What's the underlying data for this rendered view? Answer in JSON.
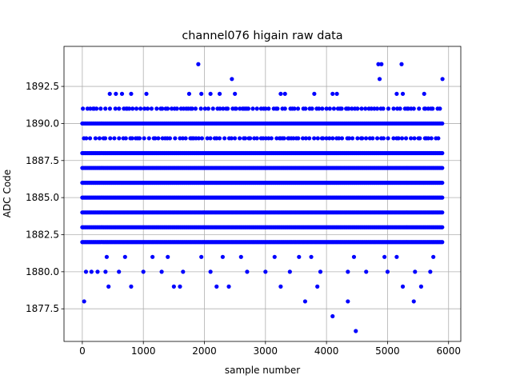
{
  "chart_data": {
    "type": "scatter",
    "title": "channel076 higain raw data",
    "xlabel": "sample number",
    "ylabel": "ADC Code",
    "xlim": [
      -300,
      6200
    ],
    "ylim": [
      1875.3,
      1895.2
    ],
    "xticks": [
      0,
      1000,
      2000,
      3000,
      4000,
      5000,
      6000
    ],
    "xtick_labels": [
      "0",
      "1000",
      "2000",
      "3000",
      "4000",
      "5000",
      "6000"
    ],
    "yticks": [
      1877.5,
      1880.0,
      1882.5,
      1885.0,
      1887.5,
      1890.0,
      1892.5
    ],
    "ytick_labels": [
      "1877.5",
      "1880.0",
      "1882.5",
      "1885.0",
      "1887.5",
      "1890.0",
      "1892.5"
    ],
    "grid": true,
    "marker_color": "#0000ff",
    "x_range": [
      0,
      5900
    ],
    "dense_levels": [
      1882,
      1883,
      1884,
      1885,
      1886,
      1887,
      1888,
      1890
    ],
    "medium_levels": [
      1889,
      1891
    ],
    "sparse_points": [
      {
        "x": 30,
        "y": 1878
      },
      {
        "x": 60,
        "y": 1880
      },
      {
        "x": 150,
        "y": 1880
      },
      {
        "x": 250,
        "y": 1880
      },
      {
        "x": 380,
        "y": 1880
      },
      {
        "x": 600,
        "y": 1880
      },
      {
        "x": 1000,
        "y": 1880
      },
      {
        "x": 1300,
        "y": 1880
      },
      {
        "x": 1650,
        "y": 1880
      },
      {
        "x": 2100,
        "y": 1880
      },
      {
        "x": 2700,
        "y": 1880
      },
      {
        "x": 3000,
        "y": 1880
      },
      {
        "x": 3400,
        "y": 1880
      },
      {
        "x": 3900,
        "y": 1880
      },
      {
        "x": 4350,
        "y": 1880
      },
      {
        "x": 4650,
        "y": 1880
      },
      {
        "x": 5000,
        "y": 1880
      },
      {
        "x": 5450,
        "y": 1880
      },
      {
        "x": 5700,
        "y": 1880
      },
      {
        "x": 400,
        "y": 1881
      },
      {
        "x": 700,
        "y": 1881
      },
      {
        "x": 1150,
        "y": 1881
      },
      {
        "x": 1400,
        "y": 1881
      },
      {
        "x": 1950,
        "y": 1881
      },
      {
        "x": 2300,
        "y": 1881
      },
      {
        "x": 2600,
        "y": 1881
      },
      {
        "x": 3150,
        "y": 1881
      },
      {
        "x": 3550,
        "y": 1881
      },
      {
        "x": 3750,
        "y": 1881
      },
      {
        "x": 4450,
        "y": 1881
      },
      {
        "x": 4950,
        "y": 1881
      },
      {
        "x": 5150,
        "y": 1881
      },
      {
        "x": 5750,
        "y": 1881
      },
      {
        "x": 430,
        "y": 1879
      },
      {
        "x": 800,
        "y": 1879
      },
      {
        "x": 1500,
        "y": 1879
      },
      {
        "x": 1600,
        "y": 1879
      },
      {
        "x": 2200,
        "y": 1879
      },
      {
        "x": 2400,
        "y": 1879
      },
      {
        "x": 3250,
        "y": 1879
      },
      {
        "x": 3850,
        "y": 1879
      },
      {
        "x": 5250,
        "y": 1879
      },
      {
        "x": 5550,
        "y": 1879
      },
      {
        "x": 3650,
        "y": 1878
      },
      {
        "x": 4350,
        "y": 1878
      },
      {
        "x": 5430,
        "y": 1878
      },
      {
        "x": 4100,
        "y": 1877
      },
      {
        "x": 4480,
        "y": 1876
      },
      {
        "x": 450,
        "y": 1892
      },
      {
        "x": 550,
        "y": 1892
      },
      {
        "x": 650,
        "y": 1892
      },
      {
        "x": 800,
        "y": 1892
      },
      {
        "x": 1050,
        "y": 1892
      },
      {
        "x": 1750,
        "y": 1892
      },
      {
        "x": 1950,
        "y": 1892
      },
      {
        "x": 2100,
        "y": 1892
      },
      {
        "x": 2250,
        "y": 1892
      },
      {
        "x": 2500,
        "y": 1892
      },
      {
        "x": 3250,
        "y": 1892
      },
      {
        "x": 3320,
        "y": 1892
      },
      {
        "x": 3800,
        "y": 1892
      },
      {
        "x": 4100,
        "y": 1892
      },
      {
        "x": 4170,
        "y": 1892
      },
      {
        "x": 5150,
        "y": 1892
      },
      {
        "x": 5250,
        "y": 1892
      },
      {
        "x": 5600,
        "y": 1892
      },
      {
        "x": 1900,
        "y": 1894
      },
      {
        "x": 4850,
        "y": 1894
      },
      {
        "x": 4900,
        "y": 1894
      },
      {
        "x": 5230,
        "y": 1894
      },
      {
        "x": 2450,
        "y": 1893
      },
      {
        "x": 4870,
        "y": 1893
      },
      {
        "x": 5900,
        "y": 1893
      }
    ]
  }
}
